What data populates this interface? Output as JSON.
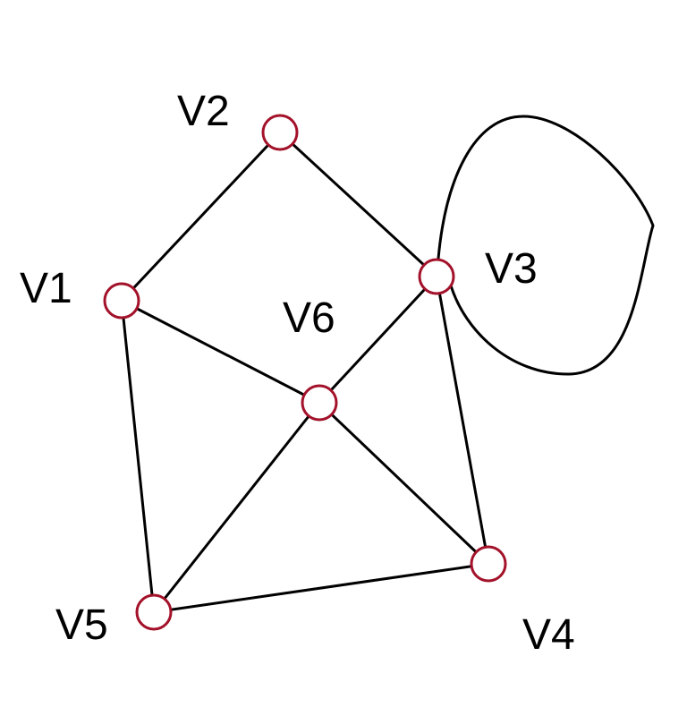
{
  "graph": {
    "vertex_stroke_color": "#a3122a",
    "edge_color": "#000000",
    "vertices": [
      {
        "id": "V1",
        "label": "V1"
      },
      {
        "id": "V2",
        "label": "V2"
      },
      {
        "id": "V3",
        "label": "V3"
      },
      {
        "id": "V4",
        "label": "V4"
      },
      {
        "id": "V5",
        "label": "V5"
      },
      {
        "id": "V6",
        "label": "V6"
      }
    ],
    "edges": [
      {
        "from": "V1",
        "to": "V2"
      },
      {
        "from": "V2",
        "to": "V3"
      },
      {
        "from": "V1",
        "to": "V6"
      },
      {
        "from": "V1",
        "to": "V5"
      },
      {
        "from": "V3",
        "to": "V6"
      },
      {
        "from": "V3",
        "to": "V4"
      },
      {
        "from": "V6",
        "to": "V5"
      },
      {
        "from": "V6",
        "to": "V4"
      },
      {
        "from": "V5",
        "to": "V4"
      },
      {
        "from": "V3",
        "to": "V3",
        "type": "loop"
      }
    ]
  }
}
